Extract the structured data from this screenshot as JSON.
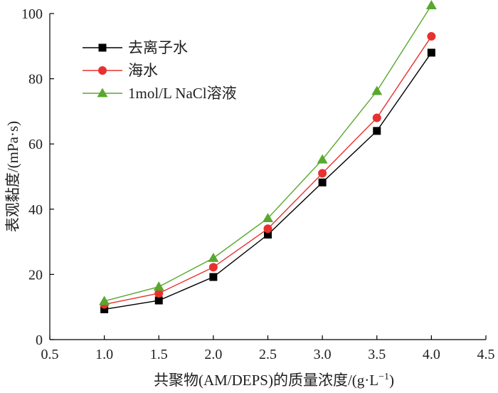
{
  "chart_data": {
    "type": "line",
    "title": "",
    "xlabel": "共聚物(AM/DEPS)的质量浓度/(g·L",
    "xlabel_superscript": "−1",
    "xlabel_suffix": ")",
    "ylabel": "表观黏度/(mPa·s)",
    "xlim": [
      0.5,
      4.5
    ],
    "ylim": [
      0,
      100
    ],
    "x_ticks": [
      "0.5",
      "1.0",
      "1.5",
      "2.0",
      "2.5",
      "3.0",
      "3.5",
      "4.0",
      "4.5"
    ],
    "y_ticks": [
      "0",
      "20",
      "40",
      "60",
      "80",
      "100"
    ],
    "x": [
      1.0,
      1.5,
      2.0,
      2.5,
      3.0,
      3.5,
      4.0
    ],
    "grid": false,
    "legend_position": "top-left",
    "series": [
      {
        "name": "去离子水",
        "color": "#000000",
        "marker": "square",
        "values": [
          9.3,
          12.0,
          19.2,
          32.2,
          48.2,
          64.0,
          88.0
        ]
      },
      {
        "name": "海水",
        "color": "#e8312f",
        "marker": "circle",
        "values": [
          10.8,
          14.2,
          22.2,
          34.0,
          51.0,
          68.0,
          93.0
        ]
      },
      {
        "name": "1mol/L NaCl溶液",
        "color": "#58a82e",
        "marker": "triangle",
        "values": [
          11.8,
          16.2,
          25.0,
          37.2,
          55.2,
          76.2,
          102.5
        ]
      }
    ]
  }
}
